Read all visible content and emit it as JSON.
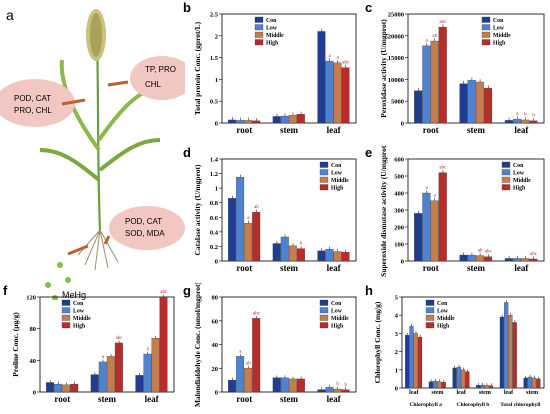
{
  "panel_letters": [
    "a",
    "b",
    "c",
    "d",
    "e",
    "f",
    "g",
    "h"
  ],
  "illustration": {
    "labels": [
      "POD, CAT",
      "PRO, CHL",
      "TP, PRO",
      "CHL",
      "POD, CAT",
      "SOD, MDA",
      "MeHg"
    ]
  },
  "legend_labels": [
    "Con",
    "Low",
    "Middle",
    "High"
  ],
  "colors": {
    "con": "#1f3e91",
    "low": "#4f83d1",
    "middle": "#c77c4e",
    "high": "#b82c2c"
  },
  "chart_data": [
    {
      "id": "b",
      "type": "bar",
      "ylabel": "Total protein Conc. (gprot/L)",
      "categories": [
        "root",
        "stem",
        "leaf"
      ],
      "ylim": [
        0,
        2.5
      ],
      "yticks": [
        0.0,
        0.5,
        1.0,
        1.5,
        2.0,
        2.5
      ],
      "series": [
        {
          "name": "Con",
          "values": [
            0.07,
            0.15,
            2.1
          ]
        },
        {
          "name": "Low",
          "values": [
            0.06,
            0.16,
            1.42
          ]
        },
        {
          "name": "Middle",
          "values": [
            0.06,
            0.18,
            1.38
          ]
        },
        {
          "name": "High",
          "values": [
            0.05,
            0.2,
            1.27
          ]
        }
      ],
      "labels": [
        [
          "",
          "",
          ""
        ],
        [
          "",
          "",
          "a"
        ],
        [
          "",
          "",
          "a"
        ],
        [
          "",
          "",
          "abc"
        ]
      ]
    },
    {
      "id": "c",
      "type": "bar",
      "ylabel": "Peroxidase activity (U/mgprot)",
      "categories": [
        "root",
        "stem",
        "leaf"
      ],
      "ylim": [
        0,
        25000
      ],
      "yticks": [
        0,
        5000,
        10000,
        15000,
        20000,
        25000
      ],
      "series": [
        {
          "name": "Con",
          "values": [
            7400,
            9000,
            600
          ]
        },
        {
          "name": "Low",
          "values": [
            17700,
            9800,
            900
          ]
        },
        {
          "name": "Middle",
          "values": [
            18800,
            9400,
            700
          ]
        },
        {
          "name": "High",
          "values": [
            22000,
            8000,
            500
          ]
        }
      ],
      "labels": [
        [
          "",
          "",
          ""
        ],
        [
          "a",
          "",
          "a"
        ],
        [
          "ab",
          "",
          "b"
        ],
        [
          "abc",
          "",
          "b"
        ]
      ]
    },
    {
      "id": "d",
      "type": "bar",
      "ylabel": "Catalase activity (U/mgprot)",
      "categories": [
        "root",
        "stem",
        "leaf"
      ],
      "ylim": [
        0,
        1.4
      ],
      "yticks": [
        0.0,
        0.2,
        0.4,
        0.6,
        0.8,
        1.0,
        1.2,
        1.4
      ],
      "series": [
        {
          "name": "Con",
          "values": [
            0.86,
            0.24,
            0.14
          ]
        },
        {
          "name": "Low",
          "values": [
            1.15,
            0.33,
            0.16
          ]
        },
        {
          "name": "Middle",
          "values": [
            0.52,
            0.21,
            0.13
          ]
        },
        {
          "name": "High",
          "values": [
            0.67,
            0.17,
            0.12
          ]
        }
      ],
      "labels": [
        [
          "",
          "",
          ""
        ],
        [
          "",
          "",
          ""
        ],
        [
          "a",
          "",
          ""
        ],
        [
          "ab",
          "b",
          ""
        ]
      ]
    },
    {
      "id": "e",
      "type": "bar",
      "ylabel": "Superoxide dismutase activity (U/mgprot)",
      "categories": [
        "root",
        "stem",
        "leaf"
      ],
      "ylim": [
        0,
        600
      ],
      "yticks": [
        0,
        100,
        200,
        300,
        400,
        500,
        600
      ],
      "series": [
        {
          "name": "Con",
          "values": [
            280,
            35,
            15
          ]
        },
        {
          "name": "Low",
          "values": [
            400,
            35,
            15
          ]
        },
        {
          "name": "Middle",
          "values": [
            355,
            32,
            15
          ]
        },
        {
          "name": "High",
          "values": [
            520,
            25,
            12
          ]
        }
      ],
      "labels": [
        [
          "",
          "",
          ""
        ],
        [
          "a",
          "",
          ""
        ],
        [
          "a",
          "ab",
          ""
        ],
        [
          "abc",
          "abc",
          "abc"
        ]
      ]
    },
    {
      "id": "f",
      "type": "bar",
      "ylabel": "Proline Conc. (µg/g)",
      "categories": [
        "root",
        "stem",
        "leaf"
      ],
      "ylim": [
        0,
        120
      ],
      "yticks": [
        0,
        40,
        80,
        120
      ],
      "series": [
        {
          "name": "Con",
          "values": [
            12,
            22,
            21
          ]
        },
        {
          "name": "Low",
          "values": [
            10,
            38,
            48
          ]
        },
        {
          "name": "Middle",
          "values": [
            9,
            45,
            68
          ]
        },
        {
          "name": "High",
          "values": [
            10,
            62,
            120
          ]
        }
      ],
      "labels": [
        [
          "",
          "",
          ""
        ],
        [
          "",
          "a",
          "a"
        ],
        [
          "",
          "",
          ""
        ],
        [
          "",
          "abc",
          "abc"
        ]
      ]
    },
    {
      "id": "g",
      "type": "bar",
      "ylabel": "Malondialdehyde Conc. (nmol/mgprot)",
      "categories": [
        "root",
        "stem",
        "leaf"
      ],
      "ylim": [
        0,
        80
      ],
      "yticks": [
        0,
        20,
        40,
        60,
        80
      ],
      "series": [
        {
          "name": "Con",
          "values": [
            10,
            12,
            2
          ]
        },
        {
          "name": "Low",
          "values": [
            30,
            12,
            4
          ]
        },
        {
          "name": "Middle",
          "values": [
            20,
            11,
            2.5
          ]
        },
        {
          "name": "High",
          "values": [
            62,
            11,
            2
          ]
        }
      ],
      "labels": [
        [
          "",
          "",
          ""
        ],
        [
          "a",
          "",
          ""
        ],
        [
          "ab",
          "",
          "b"
        ],
        [
          "abc",
          "",
          "b"
        ]
      ]
    },
    {
      "id": "h",
      "type": "bar",
      "ylabel": "Chlorophyll Conc. (mg/g)",
      "categories": [
        "leaf",
        "stem",
        "leaf",
        "stem",
        "leaf",
        "stem"
      ],
      "groups": [
        "Chlorophyll a",
        "Chlorophyll b",
        "Total chlorophyll"
      ],
      "ylim": [
        0,
        5
      ],
      "yticks": [
        0,
        1,
        2,
        3,
        4,
        5
      ],
      "series": [
        {
          "name": "Con",
          "values": [
            2.9,
            0.35,
            1.1,
            0.15,
            3.9,
            0.55
          ]
        },
        {
          "name": "Low",
          "values": [
            3.4,
            0.38,
            1.15,
            0.16,
            4.7,
            0.6
          ]
        },
        {
          "name": "Middle",
          "values": [
            3.0,
            0.35,
            1.0,
            0.14,
            4.0,
            0.55
          ]
        },
        {
          "name": "High",
          "values": [
            2.8,
            0.32,
            0.9,
            0.13,
            3.6,
            0.5
          ]
        }
      ],
      "labels": [
        [
          "",
          "",
          "",
          "",
          "",
          ""
        ],
        [
          "",
          "",
          "",
          "",
          "",
          ""
        ],
        [
          "",
          "",
          "",
          "",
          "",
          ""
        ],
        [
          "",
          "",
          "",
          "",
          "",
          ""
        ]
      ]
    }
  ]
}
